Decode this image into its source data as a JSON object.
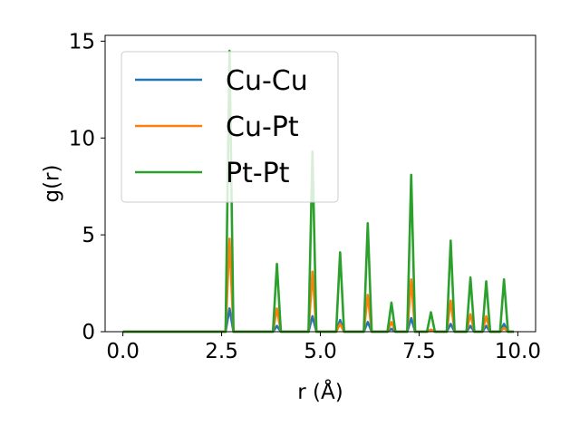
{
  "chart_data": {
    "type": "line",
    "xlabel": "r (Å)",
    "ylabel": "g(r)",
    "xlim": [
      -0.45,
      10.45
    ],
    "ylim": [
      0,
      15.3
    ],
    "xticks": [
      0.0,
      2.5,
      5.0,
      7.5,
      10.0
    ],
    "xtick_labels": [
      "0.0",
      "2.5",
      "5.0",
      "7.5",
      "10.0"
    ],
    "yticks": [
      0,
      5,
      10,
      15
    ],
    "ytick_labels": [
      "0",
      "5",
      "10",
      "15"
    ],
    "grid": false,
    "legend_position": "top-left",
    "baseline": {
      "x_start": 0.0,
      "x_end": 9.9
    },
    "peak_half_width": 0.1,
    "series": [
      {
        "name": "Cu-Cu",
        "color": "#1f77b4",
        "peaks": [
          {
            "x": 2.7,
            "y": 1.2
          },
          {
            "x": 3.9,
            "y": 0.3
          },
          {
            "x": 4.8,
            "y": 0.8
          },
          {
            "x": 5.5,
            "y": 0.6
          },
          {
            "x": 6.2,
            "y": 0.5
          },
          {
            "x": 6.8,
            "y": 0.15
          },
          {
            "x": 7.3,
            "y": 0.7
          },
          {
            "x": 7.8,
            "y": 0.1
          },
          {
            "x": 8.3,
            "y": 0.4
          },
          {
            "x": 8.8,
            "y": 0.3
          },
          {
            "x": 9.2,
            "y": 0.3
          },
          {
            "x": 9.65,
            "y": 0.4
          }
        ]
      },
      {
        "name": "Cu-Pt",
        "color": "#ff7f0e",
        "peaks": [
          {
            "x": 2.7,
            "y": 4.8
          },
          {
            "x": 3.9,
            "y": 1.2
          },
          {
            "x": 4.8,
            "y": 3.1
          },
          {
            "x": 5.5,
            "y": 0.4
          },
          {
            "x": 6.2,
            "y": 1.9
          },
          {
            "x": 6.8,
            "y": 0.5
          },
          {
            "x": 7.3,
            "y": 2.7
          },
          {
            "x": 7.8,
            "y": 0.1
          },
          {
            "x": 8.3,
            "y": 1.6
          },
          {
            "x": 8.8,
            "y": 0.9
          },
          {
            "x": 9.2,
            "y": 0.8
          },
          {
            "x": 9.65,
            "y": 0.2
          }
        ]
      },
      {
        "name": "Pt-Pt",
        "color": "#2ca02c",
        "peaks": [
          {
            "x": 2.7,
            "y": 14.5
          },
          {
            "x": 3.9,
            "y": 3.5
          },
          {
            "x": 4.8,
            "y": 9.3
          },
          {
            "x": 5.5,
            "y": 4.1
          },
          {
            "x": 6.2,
            "y": 5.6
          },
          {
            "x": 6.8,
            "y": 1.5
          },
          {
            "x": 7.3,
            "y": 8.1
          },
          {
            "x": 7.8,
            "y": 1.0
          },
          {
            "x": 8.3,
            "y": 4.7
          },
          {
            "x": 8.8,
            "y": 2.8
          },
          {
            "x": 9.2,
            "y": 2.6
          },
          {
            "x": 9.65,
            "y": 2.7
          }
        ]
      }
    ]
  }
}
